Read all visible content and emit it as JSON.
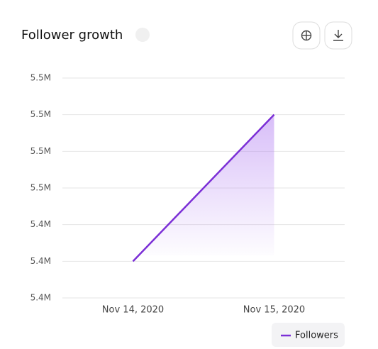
{
  "chart_data": {
    "type": "line",
    "title": "Follower growth",
    "categories": [
      "Nov 14, 2020",
      "Nov 15, 2020"
    ],
    "series": [
      {
        "name": "Followers",
        "color": "#7b2fd6",
        "values": [
          5410000,
          5490000
        ]
      }
    ],
    "ylim": [
      5390000,
      5510000
    ],
    "yticks": [
      {
        "value": 5390000,
        "label": "5.4M"
      },
      {
        "value": 5410000,
        "label": "5.4M"
      },
      {
        "value": 5430000,
        "label": "5.4M"
      },
      {
        "value": 5450000,
        "label": "5.5M"
      },
      {
        "value": 5470000,
        "label": "5.5M"
      },
      {
        "value": 5490000,
        "label": "5.5M"
      },
      {
        "value": 5510000,
        "label": "5.5M"
      }
    ],
    "grid": true,
    "legend": "bottom-right"
  }
}
